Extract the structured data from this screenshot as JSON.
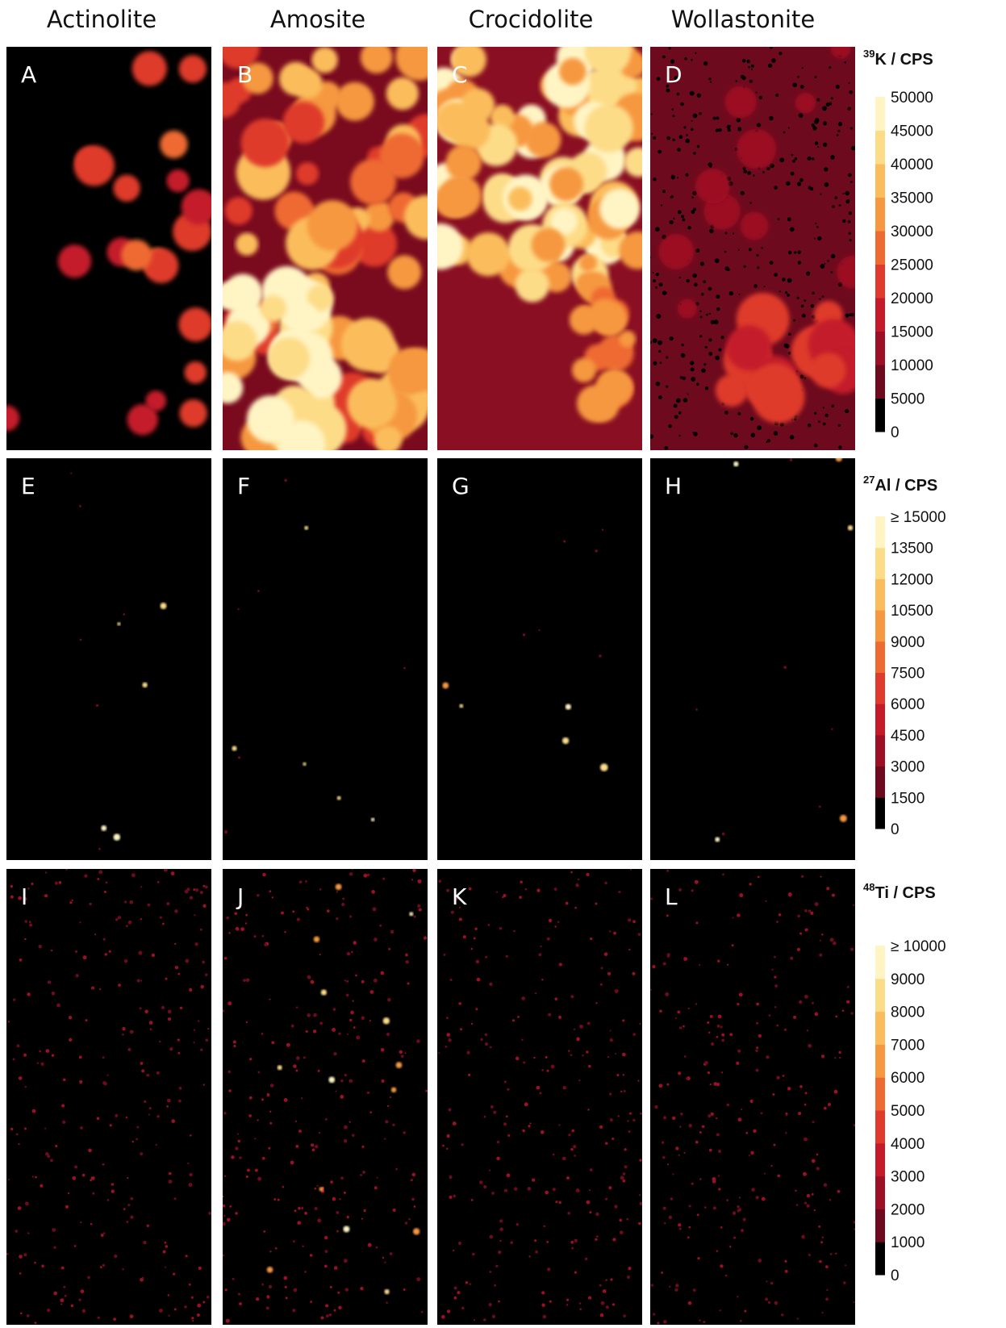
{
  "column_headers": [
    "Actinolite",
    "Amosite",
    "Crocidolite",
    "Wollastonite"
  ],
  "panels": [
    {
      "label": "A"
    },
    {
      "label": "B"
    },
    {
      "label": "C"
    },
    {
      "label": "D"
    },
    {
      "label": "E"
    },
    {
      "label": "F"
    },
    {
      "label": "G"
    },
    {
      "label": "H"
    },
    {
      "label": "I"
    },
    {
      "label": "J"
    },
    {
      "label": "K"
    },
    {
      "label": "L"
    }
  ],
  "colorbars": [
    {
      "isotope": "39",
      "title": "K / CPS",
      "ticks": [
        "0",
        "5000",
        "10000",
        "15000",
        "20000",
        "25000",
        "30000",
        "35000",
        "40000",
        "45000",
        "50000"
      ]
    },
    {
      "isotope": "27",
      "title": "Al / CPS",
      "ticks": [
        "0",
        "1500",
        "3000",
        "4500",
        "6000",
        "7500",
        "9000",
        "10500",
        "12000",
        "13500",
        "≥ 15000"
      ]
    },
    {
      "isotope": "48",
      "title": "Ti / CPS",
      "ticks": [
        "0",
        "1000",
        "2000",
        "3000",
        "4000",
        "5000",
        "6000",
        "7000",
        "8000",
        "9000",
        "≥ 10000"
      ]
    }
  ]
}
